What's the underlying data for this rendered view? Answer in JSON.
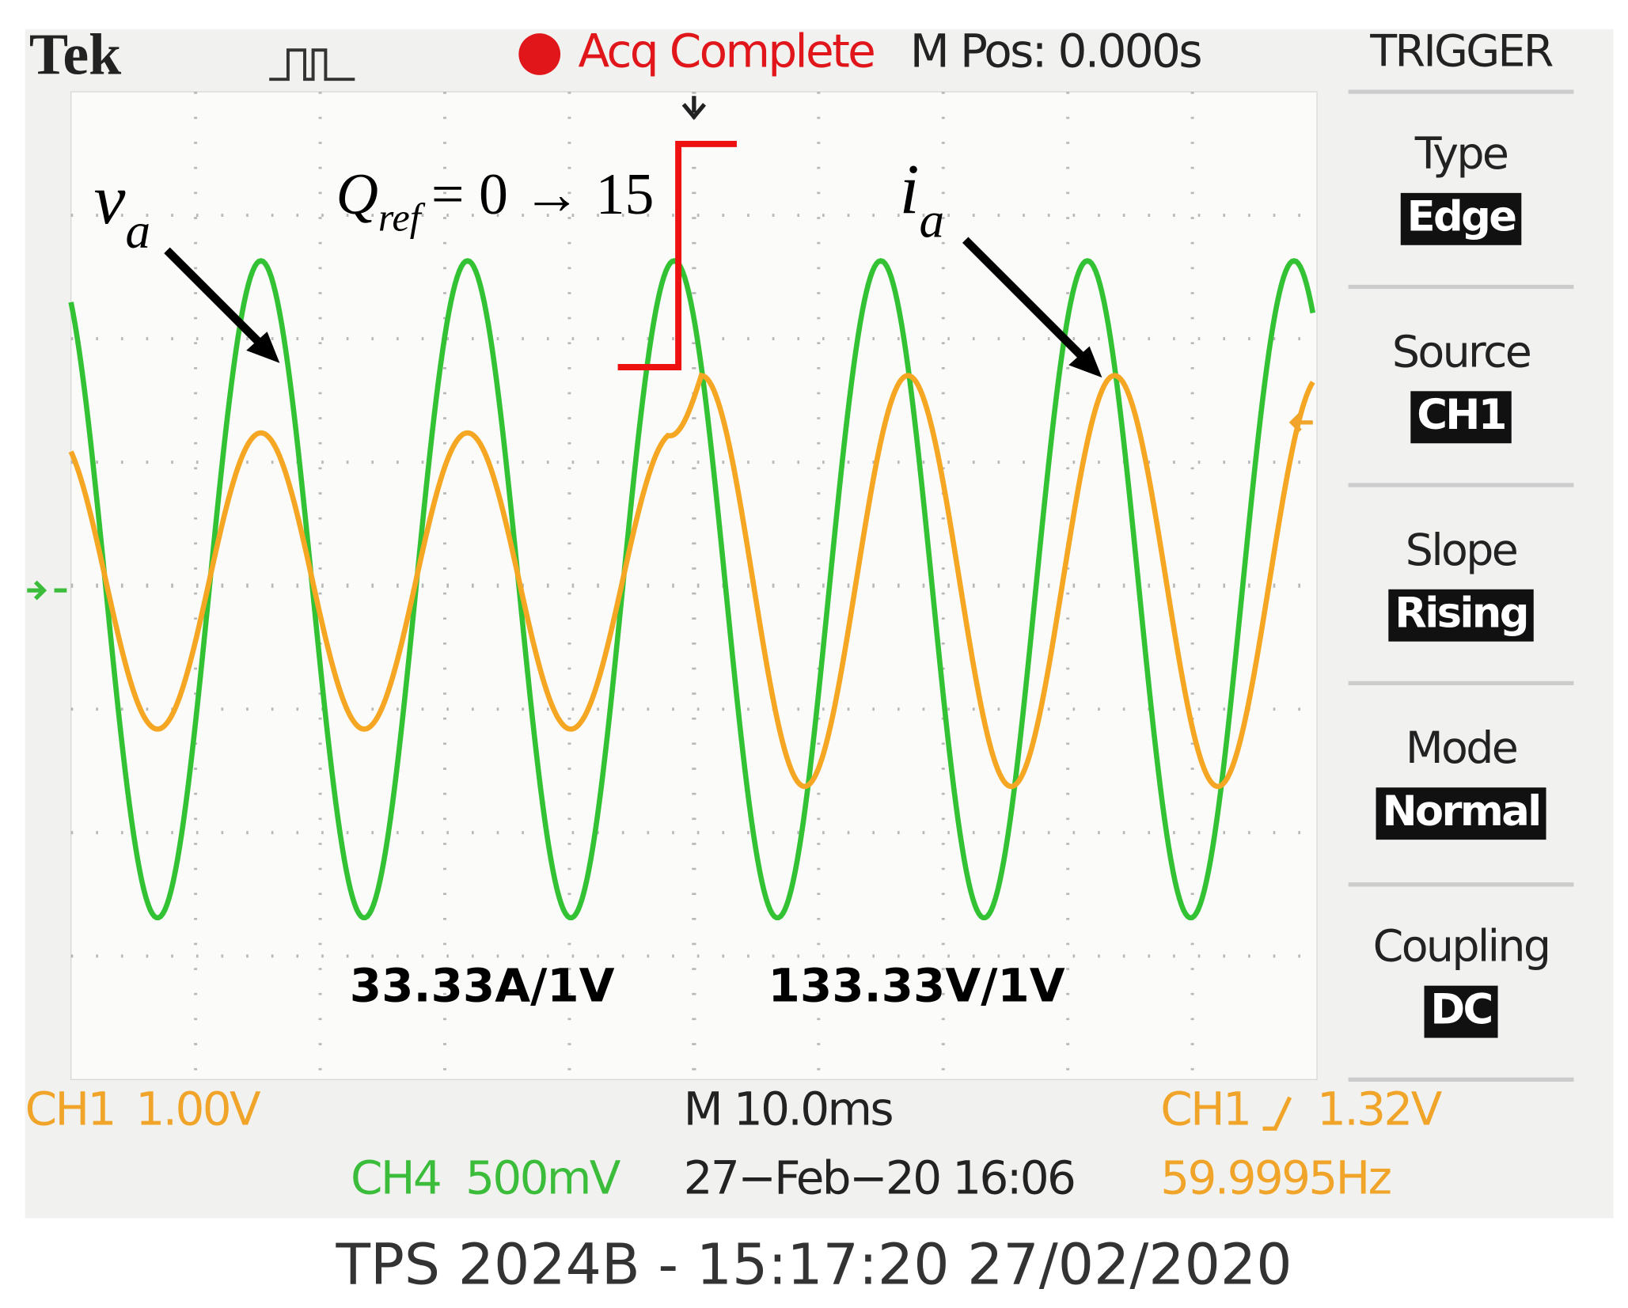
{
  "header": {
    "brand": "Tek",
    "status": "Acq Complete",
    "position": "M Pos: 0.000s"
  },
  "annotations": {
    "voltage_symbol": "v",
    "voltage_subscript": "a",
    "step_symbol": "Q",
    "step_subscript": "ref",
    "step_text": "= 0 → 15",
    "current_symbol": "i",
    "current_subscript": "a",
    "current_scale": "33.33A/1V",
    "voltage_scale": "133.33V/1V"
  },
  "trigger_menu": {
    "title": "TRIGGER",
    "items": [
      {
        "label": "Type",
        "value": "Edge"
      },
      {
        "label": "Source",
        "value": "CH1"
      },
      {
        "label": "Slope",
        "value": "Rising"
      },
      {
        "label": "Mode",
        "value": "Normal"
      },
      {
        "label": "Coupling",
        "value": "DC"
      }
    ]
  },
  "footer": {
    "ch1_name": "CH1",
    "ch1_scale": "1.00V",
    "ch4_name": "CH4",
    "ch4_scale": "500mV",
    "timebase": "M 10.0ms",
    "datetime": "27−Feb−20 16:06",
    "trigger_channel": "CH1",
    "trigger_level": "1.32V",
    "frequency": "59.9995Hz"
  },
  "caption": "TPS 2024B - 15:17:20   27/02/2020"
}
